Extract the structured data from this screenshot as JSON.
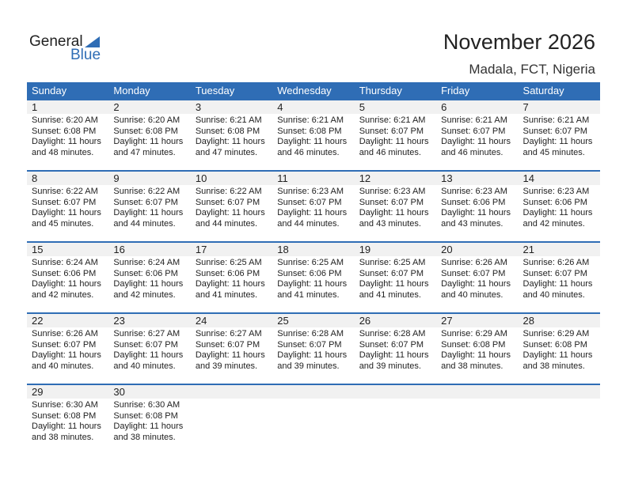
{
  "logo": {
    "text1": "General",
    "text2": "Blue"
  },
  "title": "November 2026",
  "location": "Madala, FCT, Nigeria",
  "colors": {
    "accent": "#2f6db5",
    "band": "#f1f1f1"
  },
  "weekdays": [
    "Sunday",
    "Monday",
    "Tuesday",
    "Wednesday",
    "Thursday",
    "Friday",
    "Saturday"
  ],
  "weeks": [
    [
      {
        "day": "1",
        "sunrise": "Sunrise: 6:20 AM",
        "sunset": "Sunset: 6:08 PM",
        "daylight": "Daylight: 11 hours",
        "minutes": "and 48 minutes."
      },
      {
        "day": "2",
        "sunrise": "Sunrise: 6:20 AM",
        "sunset": "Sunset: 6:08 PM",
        "daylight": "Daylight: 11 hours",
        "minutes": "and 47 minutes."
      },
      {
        "day": "3",
        "sunrise": "Sunrise: 6:21 AM",
        "sunset": "Sunset: 6:08 PM",
        "daylight": "Daylight: 11 hours",
        "minutes": "and 47 minutes."
      },
      {
        "day": "4",
        "sunrise": "Sunrise: 6:21 AM",
        "sunset": "Sunset: 6:08 PM",
        "daylight": "Daylight: 11 hours",
        "minutes": "and 46 minutes."
      },
      {
        "day": "5",
        "sunrise": "Sunrise: 6:21 AM",
        "sunset": "Sunset: 6:07 PM",
        "daylight": "Daylight: 11 hours",
        "minutes": "and 46 minutes."
      },
      {
        "day": "6",
        "sunrise": "Sunrise: 6:21 AM",
        "sunset": "Sunset: 6:07 PM",
        "daylight": "Daylight: 11 hours",
        "minutes": "and 46 minutes."
      },
      {
        "day": "7",
        "sunrise": "Sunrise: 6:21 AM",
        "sunset": "Sunset: 6:07 PM",
        "daylight": "Daylight: 11 hours",
        "minutes": "and 45 minutes."
      }
    ],
    [
      {
        "day": "8",
        "sunrise": "Sunrise: 6:22 AM",
        "sunset": "Sunset: 6:07 PM",
        "daylight": "Daylight: 11 hours",
        "minutes": "and 45 minutes."
      },
      {
        "day": "9",
        "sunrise": "Sunrise: 6:22 AM",
        "sunset": "Sunset: 6:07 PM",
        "daylight": "Daylight: 11 hours",
        "minutes": "and 44 minutes."
      },
      {
        "day": "10",
        "sunrise": "Sunrise: 6:22 AM",
        "sunset": "Sunset: 6:07 PM",
        "daylight": "Daylight: 11 hours",
        "minutes": "and 44 minutes."
      },
      {
        "day": "11",
        "sunrise": "Sunrise: 6:23 AM",
        "sunset": "Sunset: 6:07 PM",
        "daylight": "Daylight: 11 hours",
        "minutes": "and 44 minutes."
      },
      {
        "day": "12",
        "sunrise": "Sunrise: 6:23 AM",
        "sunset": "Sunset: 6:07 PM",
        "daylight": "Daylight: 11 hours",
        "minutes": "and 43 minutes."
      },
      {
        "day": "13",
        "sunrise": "Sunrise: 6:23 AM",
        "sunset": "Sunset: 6:06 PM",
        "daylight": "Daylight: 11 hours",
        "minutes": "and 43 minutes."
      },
      {
        "day": "14",
        "sunrise": "Sunrise: 6:23 AM",
        "sunset": "Sunset: 6:06 PM",
        "daylight": "Daylight: 11 hours",
        "minutes": "and 42 minutes."
      }
    ],
    [
      {
        "day": "15",
        "sunrise": "Sunrise: 6:24 AM",
        "sunset": "Sunset: 6:06 PM",
        "daylight": "Daylight: 11 hours",
        "minutes": "and 42 minutes."
      },
      {
        "day": "16",
        "sunrise": "Sunrise: 6:24 AM",
        "sunset": "Sunset: 6:06 PM",
        "daylight": "Daylight: 11 hours",
        "minutes": "and 42 minutes."
      },
      {
        "day": "17",
        "sunrise": "Sunrise: 6:25 AM",
        "sunset": "Sunset: 6:06 PM",
        "daylight": "Daylight: 11 hours",
        "minutes": "and 41 minutes."
      },
      {
        "day": "18",
        "sunrise": "Sunrise: 6:25 AM",
        "sunset": "Sunset: 6:06 PM",
        "daylight": "Daylight: 11 hours",
        "minutes": "and 41 minutes."
      },
      {
        "day": "19",
        "sunrise": "Sunrise: 6:25 AM",
        "sunset": "Sunset: 6:07 PM",
        "daylight": "Daylight: 11 hours",
        "minutes": "and 41 minutes."
      },
      {
        "day": "20",
        "sunrise": "Sunrise: 6:26 AM",
        "sunset": "Sunset: 6:07 PM",
        "daylight": "Daylight: 11 hours",
        "minutes": "and 40 minutes."
      },
      {
        "day": "21",
        "sunrise": "Sunrise: 6:26 AM",
        "sunset": "Sunset: 6:07 PM",
        "daylight": "Daylight: 11 hours",
        "minutes": "and 40 minutes."
      }
    ],
    [
      {
        "day": "22",
        "sunrise": "Sunrise: 6:26 AM",
        "sunset": "Sunset: 6:07 PM",
        "daylight": "Daylight: 11 hours",
        "minutes": "and 40 minutes."
      },
      {
        "day": "23",
        "sunrise": "Sunrise: 6:27 AM",
        "sunset": "Sunset: 6:07 PM",
        "daylight": "Daylight: 11 hours",
        "minutes": "and 40 minutes."
      },
      {
        "day": "24",
        "sunrise": "Sunrise: 6:27 AM",
        "sunset": "Sunset: 6:07 PM",
        "daylight": "Daylight: 11 hours",
        "minutes": "and 39 minutes."
      },
      {
        "day": "25",
        "sunrise": "Sunrise: 6:28 AM",
        "sunset": "Sunset: 6:07 PM",
        "daylight": "Daylight: 11 hours",
        "minutes": "and 39 minutes."
      },
      {
        "day": "26",
        "sunrise": "Sunrise: 6:28 AM",
        "sunset": "Sunset: 6:07 PM",
        "daylight": "Daylight: 11 hours",
        "minutes": "and 39 minutes."
      },
      {
        "day": "27",
        "sunrise": "Sunrise: 6:29 AM",
        "sunset": "Sunset: 6:08 PM",
        "daylight": "Daylight: 11 hours",
        "minutes": "and 38 minutes."
      },
      {
        "day": "28",
        "sunrise": "Sunrise: 6:29 AM",
        "sunset": "Sunset: 6:08 PM",
        "daylight": "Daylight: 11 hours",
        "minutes": "and 38 minutes."
      }
    ],
    [
      {
        "day": "29",
        "sunrise": "Sunrise: 6:30 AM",
        "sunset": "Sunset: 6:08 PM",
        "daylight": "Daylight: 11 hours",
        "minutes": "and 38 minutes."
      },
      {
        "day": "30",
        "sunrise": "Sunrise: 6:30 AM",
        "sunset": "Sunset: 6:08 PM",
        "daylight": "Daylight: 11 hours",
        "minutes": "and 38 minutes."
      }
    ]
  ]
}
